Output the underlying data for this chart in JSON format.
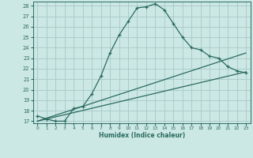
{
  "xlabel": "Humidex (Indice chaleur)",
  "bg_color": "#cce8e4",
  "grid_color": "#aacccc",
  "line_color": "#2a6b60",
  "xlim": [
    -0.5,
    23.5
  ],
  "ylim": [
    16.8,
    28.4
  ],
  "xticks": [
    0,
    1,
    2,
    3,
    4,
    5,
    6,
    7,
    8,
    9,
    10,
    11,
    12,
    13,
    14,
    15,
    16,
    17,
    18,
    19,
    20,
    21,
    22,
    23
  ],
  "yticks": [
    17,
    18,
    19,
    20,
    21,
    22,
    23,
    24,
    25,
    26,
    27,
    28
  ],
  "curve_x": [
    0,
    1,
    2,
    3,
    4,
    5,
    6,
    7,
    8,
    9,
    10,
    11,
    12,
    13,
    14,
    15,
    16,
    17,
    18,
    19,
    20,
    21,
    22,
    23
  ],
  "curve_y": [
    17.5,
    17.2,
    17.0,
    17.0,
    18.2,
    18.4,
    19.6,
    21.3,
    23.5,
    25.2,
    26.5,
    27.8,
    27.9,
    28.2,
    27.6,
    26.3,
    25.0,
    24.0,
    23.8,
    23.2,
    23.0,
    22.2,
    21.8,
    21.6
  ],
  "line2_x": [
    0,
    23
  ],
  "line2_y": [
    17.0,
    23.5
  ],
  "line3_x": [
    0,
    23
  ],
  "line3_y": [
    17.0,
    21.7
  ]
}
